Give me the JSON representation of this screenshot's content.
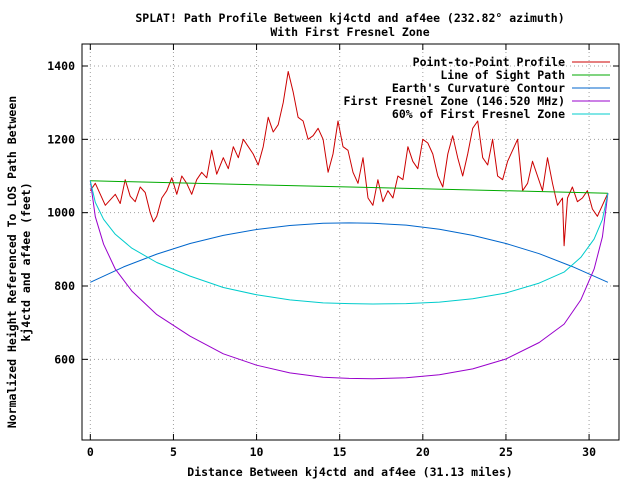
{
  "chart_data": {
    "type": "line",
    "title": "SPLAT! Path Profile Between kj4ctd and af4ee (232.82° azimuth)",
    "subtitle": "With First Fresnel Zone",
    "xlabel": "Distance Between kj4ctd and af4ee (31.13 miles)",
    "ylabel_line1": "Normalized Height Referenced To LOS Path Between",
    "ylabel_line2": "kj4ctd and af4ee (feet)",
    "xlim": [
      -0.5,
      31.8
    ],
    "ylim": [
      380,
      1460
    ],
    "xticks": [
      0,
      5,
      10,
      15,
      20,
      25,
      30
    ],
    "yticks": [
      600,
      800,
      1000,
      1200,
      1400
    ],
    "grid": true,
    "legend_position": "top-right",
    "series": [
      {
        "name": "Point-to-Point Profile",
        "color": "#cc0000",
        "x": [
          0,
          0.3,
          0.6,
          0.9,
          1.2,
          1.5,
          1.8,
          2.1,
          2.4,
          2.7,
          3.0,
          3.3,
          3.6,
          3.8,
          4.0,
          4.3,
          4.6,
          4.9,
          5.2,
          5.5,
          5.8,
          6.1,
          6.4,
          6.7,
          7.0,
          7.3,
          7.6,
          8.0,
          8.3,
          8.6,
          8.9,
          9.2,
          9.5,
          9.8,
          10.1,
          10.4,
          10.7,
          11.0,
          11.3,
          11.6,
          11.9,
          12.2,
          12.5,
          12.8,
          13.1,
          13.4,
          13.7,
          14.0,
          14.3,
          14.6,
          14.9,
          15.2,
          15.5,
          15.8,
          16.1,
          16.4,
          16.7,
          17.0,
          17.3,
          17.6,
          17.9,
          18.2,
          18.5,
          18.8,
          19.1,
          19.4,
          19.7,
          20.0,
          20.3,
          20.6,
          20.9,
          21.2,
          21.5,
          21.8,
          22.1,
          22.4,
          22.7,
          23.0,
          23.3,
          23.6,
          23.9,
          24.2,
          24.5,
          24.8,
          25.1,
          25.4,
          25.7,
          26.0,
          26.3,
          26.6,
          26.9,
          27.2,
          27.5,
          27.8,
          28.1,
          28.4,
          28.5,
          28.7,
          29.0,
          29.3,
          29.6,
          29.9,
          30.2,
          30.5,
          30.8,
          31.0,
          31.13
        ],
        "y": [
          1060,
          1080,
          1050,
          1020,
          1035,
          1050,
          1025,
          1090,
          1045,
          1030,
          1070,
          1055,
          1000,
          975,
          990,
          1040,
          1060,
          1095,
          1050,
          1100,
          1080,
          1050,
          1090,
          1110,
          1095,
          1170,
          1105,
          1150,
          1120,
          1180,
          1150,
          1200,
          1180,
          1160,
          1130,
          1180,
          1260,
          1220,
          1240,
          1300,
          1385,
          1330,
          1260,
          1250,
          1200,
          1210,
          1230,
          1200,
          1110,
          1160,
          1250,
          1180,
          1170,
          1110,
          1080,
          1150,
          1040,
          1020,
          1090,
          1030,
          1060,
          1040,
          1100,
          1090,
          1180,
          1140,
          1120,
          1200,
          1190,
          1160,
          1100,
          1070,
          1160,
          1210,
          1150,
          1100,
          1160,
          1230,
          1250,
          1150,
          1130,
          1200,
          1100,
          1090,
          1140,
          1170,
          1200,
          1060,
          1080,
          1140,
          1100,
          1060,
          1150,
          1080,
          1020,
          1040,
          910,
          1040,
          1070,
          1030,
          1040,
          1060,
          1010,
          990,
          1020,
          1040,
          1053
        ]
      },
      {
        "name": "Line of Sight Path",
        "color": "#00aa00",
        "x": [
          0,
          31.13
        ],
        "y": [
          1087,
          1053
        ]
      },
      {
        "name": "Earth's Curvature Contour",
        "color": "#0066cc",
        "x": [
          0,
          2,
          4,
          6,
          8,
          10,
          12,
          14,
          15.565,
          17,
          19,
          21,
          23,
          25,
          27,
          29,
          31.13
        ],
        "y": [
          810,
          852,
          887,
          916,
          938,
          954,
          965,
          971,
          972,
          971,
          966,
          955,
          938,
          916,
          888,
          853,
          810
        ]
      },
      {
        "name": "First Fresnel Zone (146.520 MHz)",
        "color": "#9900cc",
        "x": [
          0,
          0.3,
          0.8,
          1.5,
          2.5,
          4,
          6,
          8,
          10,
          12,
          14,
          15.565,
          17,
          19,
          21,
          23,
          25,
          27,
          28.5,
          29.5,
          30.3,
          30.8,
          31.13
        ],
        "y": [
          1087,
          989,
          914,
          846,
          786,
          722,
          663,
          615,
          584,
          563,
          551,
          548,
          547,
          550,
          558,
          574,
          601,
          646,
          696,
          762,
          846,
          934,
          1053
        ]
      },
      {
        "name": "60% of First Fresnel Zone",
        "color": "#00cccc",
        "x": [
          0,
          0.3,
          0.8,
          1.5,
          2.5,
          4,
          6,
          8,
          10,
          12,
          14,
          15.565,
          17,
          19,
          21,
          23,
          25,
          27,
          28.5,
          29.5,
          30.3,
          30.8,
          31.13
        ],
        "y": [
          1087,
          1028,
          982,
          941,
          903,
          864,
          827,
          796,
          776,
          762,
          754,
          752,
          751,
          752,
          756,
          765,
          781,
          808,
          838,
          878,
          928,
          981,
          1053
        ]
      }
    ]
  }
}
